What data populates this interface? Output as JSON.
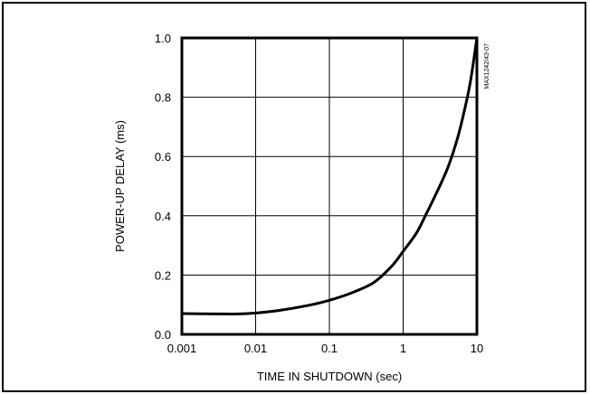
{
  "chart_data": {
    "type": "line",
    "title": "",
    "chart_id": "MAX1242/43-07",
    "xlabel": "TIME IN SHUTDOWN (sec)",
    "ylabel": "POWER-UP DELAY (ms)",
    "xscale": "log",
    "xlim": [
      0.001,
      10
    ],
    "ylim": [
      0.0,
      1.0
    ],
    "grid": true,
    "x_ticks": [
      "0.001",
      "0.01",
      "0.1",
      "1",
      "10"
    ],
    "y_ticks": [
      "0.0",
      "0.2",
      "0.4",
      "0.6",
      "0.8",
      "1.0"
    ],
    "series": [
      {
        "color": "#000000",
        "x": [
          0.001,
          0.003,
          0.006,
          0.01,
          0.02,
          0.05,
          0.1,
          0.2,
          0.4,
          0.7,
          1,
          1.5,
          2,
          3,
          4,
          5,
          6,
          8,
          10
        ],
        "y": [
          0.07,
          0.069,
          0.069,
          0.072,
          0.08,
          0.097,
          0.115,
          0.14,
          0.175,
          0.23,
          0.28,
          0.34,
          0.4,
          0.49,
          0.56,
          0.63,
          0.7,
          0.84,
          1.0
        ]
      }
    ]
  }
}
